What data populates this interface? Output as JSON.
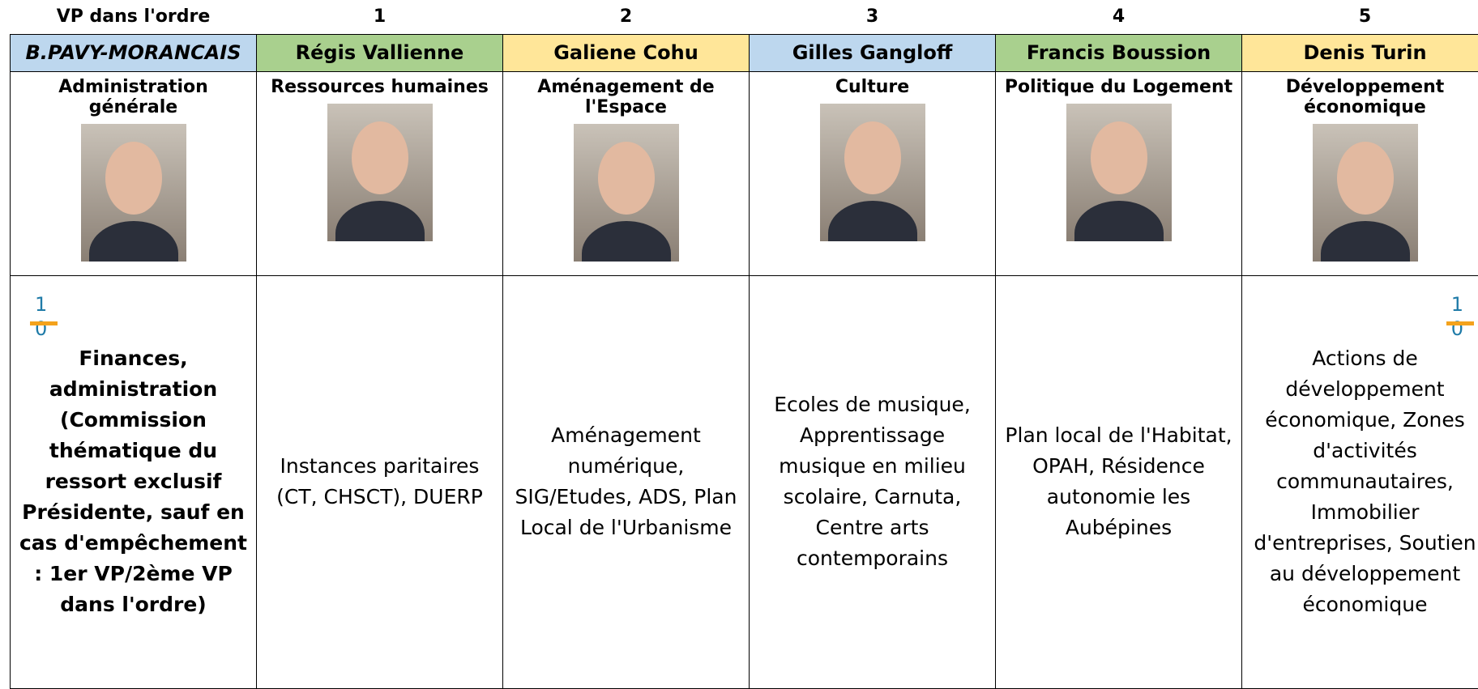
{
  "header": [
    "VP dans l'ordre",
    "1",
    "2",
    "3",
    "4",
    "5"
  ],
  "columns": [
    {
      "name": "B.PAVY-MORANCAIS",
      "role": "Administration générale",
      "content": "Finances, administration (Commission thématique du ressort exclusif Présidente, sauf en cas d'empêchement : 1er VP/2ème VP dans l'ordre)",
      "mark": [
        "1",
        "0"
      ]
    },
    {
      "name": "Régis Vallienne",
      "role": "Ressources humaines",
      "content": "Instances paritaires (CT, CHSCT), DUERP"
    },
    {
      "name": "Galiene Cohu",
      "role": "Aménagement de l'Espace",
      "content": "Aménagement numérique, SIG/Etudes, ADS, Plan Local de l'Urbanisme"
    },
    {
      "name": "Gilles Gangloff",
      "role": "Culture",
      "content": "Ecoles de musique, Apprentissage musique en milieu scolaire, Carnuta, Centre arts contemporains"
    },
    {
      "name": "Francis Boussion",
      "role": "Politique du Logement",
      "content": "Plan local de l'Habitat, OPAH, Résidence autonomie les Aubépines"
    },
    {
      "name": "Denis Turin",
      "role": "Développement économique",
      "content": "Actions de développement économique, Zones d'activités communautaires, Immobilier d'entreprises, Soutien au développement économique",
      "mark": [
        "1",
        "0"
      ]
    }
  ]
}
